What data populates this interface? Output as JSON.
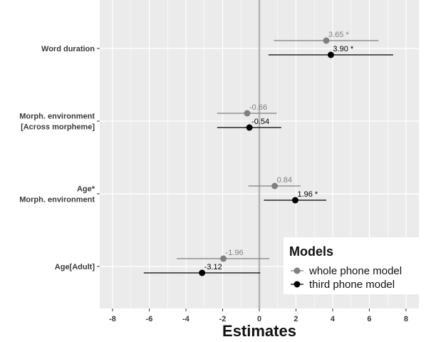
{
  "chart_data": {
    "type": "forest",
    "xlabel": "Estimates",
    "xlim": [
      -8.7,
      8.7
    ],
    "x_ticks": [
      -8,
      -6,
      -4,
      -2,
      0,
      2,
      4,
      6,
      8
    ],
    "x_tick_labels": [
      "-8",
      "-6",
      "-4",
      "-2",
      "0",
      "2",
      "4",
      "6",
      "8"
    ],
    "grid": true,
    "reference_line": 0,
    "categories": [
      {
        "label_lines": [
          "Word duration"
        ]
      },
      {
        "label_lines": [
          "Morph. environment",
          "[Across morpheme]"
        ]
      },
      {
        "label_lines": [
          "Age*",
          "Morph. environment"
        ]
      },
      {
        "label_lines": [
          "Age[Adult]"
        ]
      }
    ],
    "series": [
      {
        "name": "whole phone model",
        "color": "#808080",
        "points": [
          {
            "category": 0,
            "estimate": 3.65,
            "lower": 0.8,
            "upper": 6.5,
            "label": "3.65 *"
          },
          {
            "category": 1,
            "estimate": -0.66,
            "lower": -2.3,
            "upper": 0.95,
            "label": "-0.66"
          },
          {
            "category": 2,
            "estimate": 0.84,
            "lower": -0.6,
            "upper": 2.25,
            "label": "0.84"
          },
          {
            "category": 3,
            "estimate": -1.96,
            "lower": -4.5,
            "upper": 0.55,
            "label": "-1.96"
          }
        ]
      },
      {
        "name": "third phone model",
        "color": "#000000",
        "points": [
          {
            "category": 0,
            "estimate": 3.9,
            "lower": 0.5,
            "upper": 7.3,
            "label": "3.90 *"
          },
          {
            "category": 1,
            "estimate": -0.54,
            "lower": -2.3,
            "upper": 1.2,
            "label": "-0.54"
          },
          {
            "category": 2,
            "estimate": 1.96,
            "lower": 0.25,
            "upper": 3.65,
            "label": "1.96 *"
          },
          {
            "category": 3,
            "estimate": -3.12,
            "lower": -6.3,
            "upper": 0.05,
            "label": "-3.12"
          }
        ]
      }
    ],
    "legend": {
      "title": "Models",
      "position": "bottom-right"
    }
  }
}
